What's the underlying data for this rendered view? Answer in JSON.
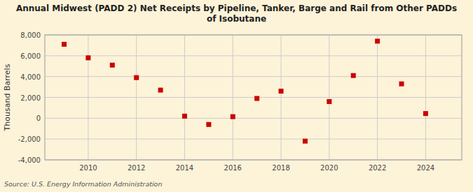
{
  "chart_data": {
    "type": "scatter",
    "title": "Annual Midwest (PADD 2) Net Receipts by Pipeline, Tanker, Barge and Rail from Other PADDs\nof Isobutane",
    "ylabel": "Thousand Barrels",
    "source": "Source: U.S. Energy Information Administration",
    "x": [
      2009,
      2010,
      2011,
      2012,
      2013,
      2014,
      2015,
      2016,
      2017,
      2018,
      2019,
      2020,
      2021,
      2022,
      2023,
      2024
    ],
    "values": [
      7100,
      5800,
      5100,
      3900,
      2700,
      200,
      -600,
      150,
      1900,
      2600,
      -2200,
      1600,
      4100,
      7400,
      3300,
      450
    ],
    "color": "#cc0000",
    "marker": "square",
    "xlim": [
      2008.2,
      2025.5
    ],
    "ylim": [
      -4000,
      8000
    ],
    "xticks": [
      2010,
      2012,
      2014,
      2016,
      2018,
      2020,
      2022,
      2024
    ],
    "yticks": [
      {
        "value": -4000,
        "label": "-4,000"
      },
      {
        "value": -2000,
        "label": "-2,000"
      },
      0,
      {
        "value": 2000,
        "label": "2,000"
      },
      {
        "value": 4000,
        "label": "4,000"
      },
      {
        "value": 6000,
        "label": "6,000"
      },
      {
        "value": 8000,
        "label": "8,000"
      }
    ],
    "grid": true
  }
}
